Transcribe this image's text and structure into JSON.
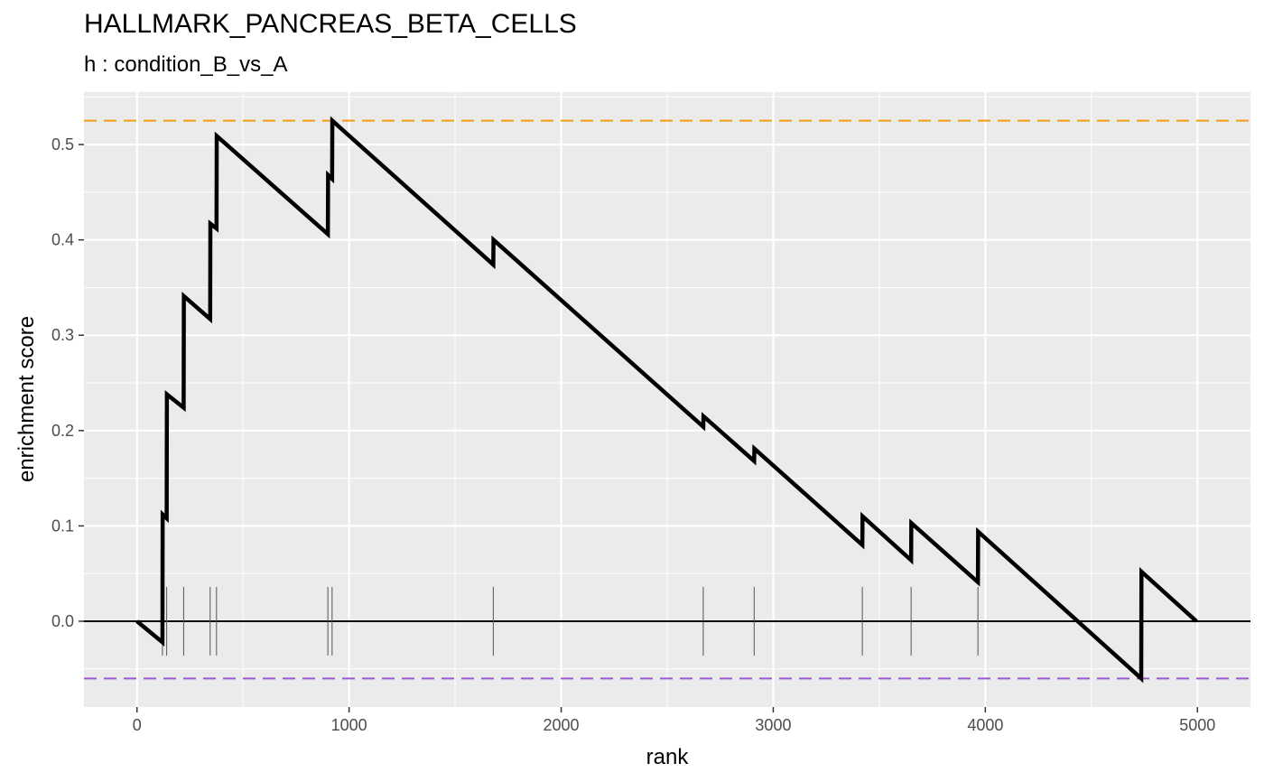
{
  "chart_data": {
    "type": "line",
    "title": "HALLMARK_PANCREAS_BETA_CELLS",
    "subtitle": "h : condition_B_vs_A",
    "xlabel": "rank",
    "ylabel": "enrichment score",
    "xlim": [
      -250,
      5250
    ],
    "ylim": [
      -0.09,
      0.555
    ],
    "x_ticks": [
      0,
      1000,
      2000,
      3000,
      4000,
      5000
    ],
    "y_ticks": [
      0.0,
      0.1,
      0.2,
      0.3,
      0.4,
      0.5
    ],
    "x_tick_labels": [
      "0",
      "1000",
      "2000",
      "3000",
      "4000",
      "5000"
    ],
    "y_tick_labels": [
      "0.0",
      "0.1",
      "0.2",
      "0.3",
      "0.4",
      "0.5"
    ],
    "grid": true,
    "background": "#ebebeb",
    "max_es": 0.525,
    "min_es": -0.06,
    "max_es_color": "#f39c12",
    "min_es_color": "#9b59d0",
    "curve_color": "#000000",
    "series": [
      {
        "x": [
          0,
          120,
          121,
          140,
          141,
          220,
          221,
          345,
          346,
          375,
          376,
          900,
          901,
          920,
          921,
          1680,
          1681,
          2670,
          2671,
          2910,
          2911,
          3420,
          3421,
          3650,
          3651,
          3965,
          3966,
          4735,
          4736,
          4995
        ],
        "y": [
          0.0,
          -0.022,
          0.112,
          0.108,
          0.238,
          0.224,
          0.341,
          0.317,
          0.417,
          0.412,
          0.509,
          0.406,
          0.468,
          0.464,
          0.525,
          0.374,
          0.4,
          0.204,
          0.215,
          0.168,
          0.181,
          0.08,
          0.11,
          0.064,
          0.103,
          0.041,
          0.094,
          -0.06,
          0.052,
          0.0
        ]
      }
    ],
    "gene_hits": [
      120,
      140,
      220,
      345,
      375,
      900,
      920,
      1680,
      2670,
      2910,
      3420,
      3650,
      3965,
      4735
    ]
  }
}
